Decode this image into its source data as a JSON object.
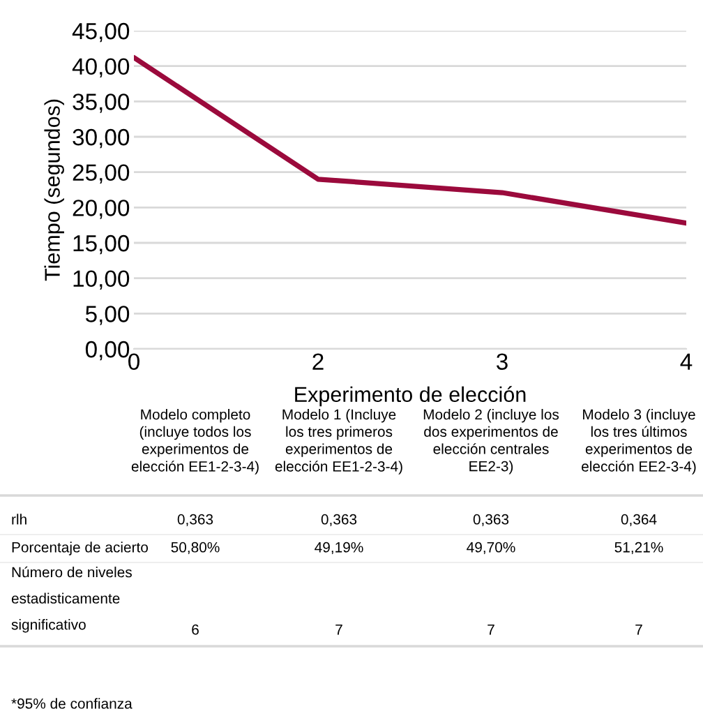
{
  "chart_data": {
    "type": "line",
    "xlabel": "Experimento de elección",
    "ylabel": "Tiempo (segundos)",
    "categories": [
      "0",
      "2",
      "3",
      "4"
    ],
    "series": [
      {
        "color": "#9b0a3c",
        "values": [
          41.2,
          24.0,
          22.1,
          17.8
        ]
      }
    ],
    "ylim": [
      0,
      45
    ],
    "yticks": [
      {
        "value": 0,
        "label": "0,00"
      },
      {
        "value": 5,
        "label": "5,00"
      },
      {
        "value": 10,
        "label": "10,00"
      },
      {
        "value": 15,
        "label": "15,00"
      },
      {
        "value": 20,
        "label": "20,00"
      },
      {
        "value": 25,
        "label": "25,00"
      },
      {
        "value": 30,
        "label": "30,00"
      },
      {
        "value": 35,
        "label": "35,00"
      },
      {
        "value": 40,
        "label": "40,00"
      },
      {
        "value": 45,
        "label": "45,00"
      }
    ],
    "grid": "y",
    "marker": "none",
    "line_style": "solid",
    "annotations": [
      "Modelo completo\n(incluye todos los\nexperimentos de\nelección EE1-2-3-4)",
      "Modelo 1 (Incluye\nlos tres primeros\nexperimentos de\nelección EE1-2-3-4)",
      "Modelo 2 (incluye los\ndos experimentos de\nelección centrales\nEE2-3)",
      "Modelo 3 (incluye\nlos tres últimos\nexperimentos de\nelección EE2-3-4)",
      "rlh",
      "0,363",
      "0,363",
      "0,363",
      "0,364",
      "Porcentaje de acierto",
      "50,80%",
      "49,19%",
      "49,70%",
      "51,21%",
      "Número de niveles\nestadisticamente\nsignificativo",
      "6",
      "7",
      "7",
      "7",
      "*95% de confianza"
    ]
  }
}
